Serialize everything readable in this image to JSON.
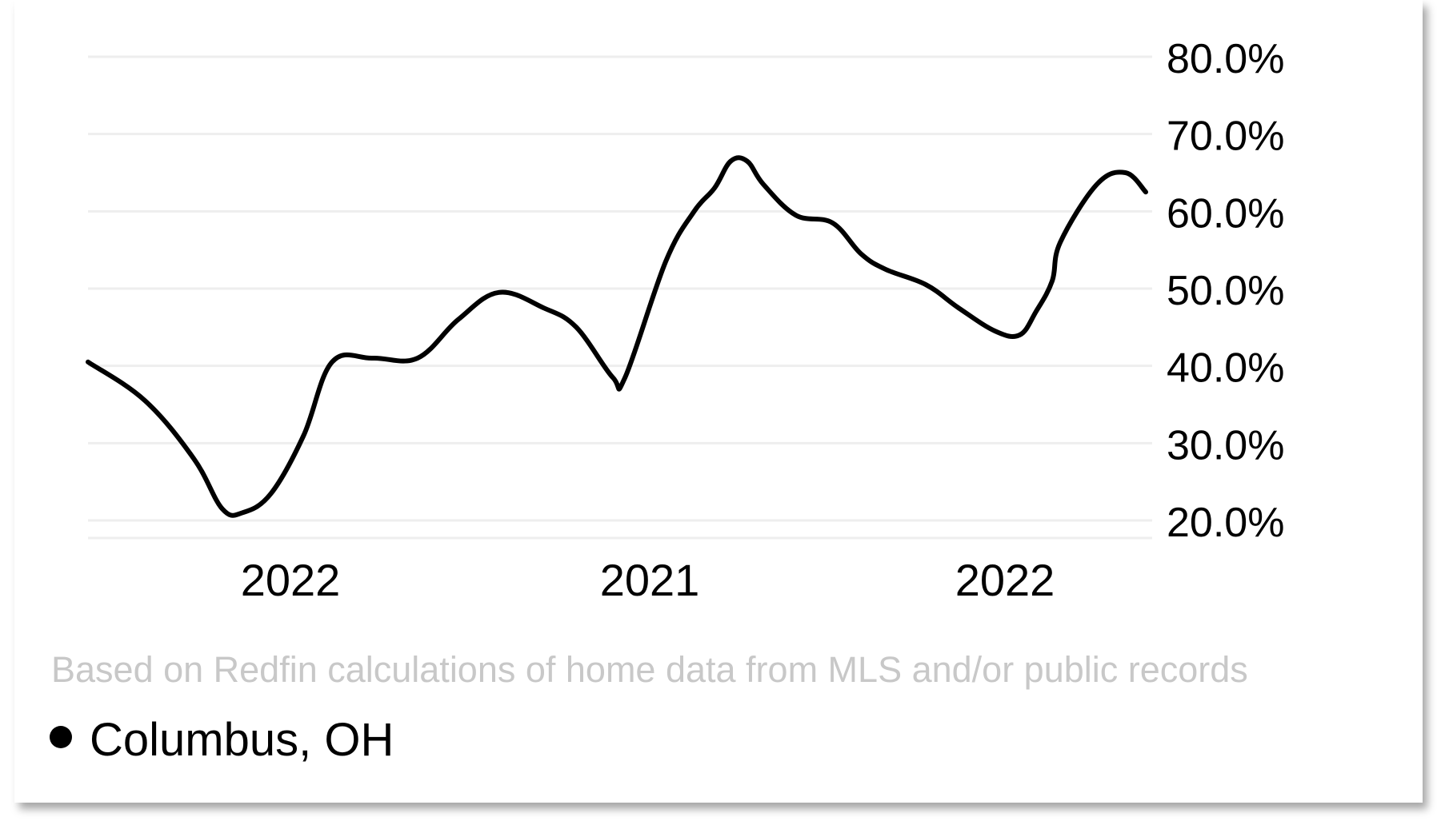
{
  "chart_data": {
    "type": "line",
    "x_tick_labels": [
      "2022",
      "2021",
      "2022"
    ],
    "y_tick_labels": [
      "80.0%",
      "70.0%",
      "60.0%",
      "50.0%",
      "40.0%",
      "30.0%",
      "20.0%"
    ],
    "y_ticks": [
      80,
      70,
      60,
      50,
      40,
      30,
      20
    ],
    "ylim": [
      18.0,
      82.0
    ],
    "xlim": [
      0,
      26
    ],
    "grid": true,
    "y_axis_side": "right",
    "series": [
      {
        "name": "Columbus, OH",
        "color": "#000000",
        "x": [
          0,
          1.4,
          2.6,
          3.3,
          3.8,
          4.5,
          5.3,
          6.0,
          7.0,
          8.1,
          9.1,
          10.1,
          11.2,
          12.0,
          12.9,
          13.2,
          14.2,
          14.9,
          15.4,
          15.8,
          16.2,
          16.6,
          17.4,
          18.3,
          19.0,
          19.6,
          20.6,
          21.4,
          22.3,
          22.9,
          23.3,
          23.7,
          23.9,
          24.8,
          25.5,
          26.0
        ],
        "y": [
          40.5,
          35.5,
          28.0,
          21.5,
          21.0,
          23.5,
          31.0,
          40.5,
          41.0,
          41.0,
          46.0,
          49.5,
          47.5,
          45.0,
          38.5,
          38.5,
          53.5,
          60.0,
          63.0,
          66.5,
          66.5,
          63.5,
          59.5,
          58.5,
          54.5,
          52.5,
          50.5,
          47.5,
          44.5,
          44.0,
          47.0,
          51.0,
          56.0,
          63.5,
          65.0,
          62.5
        ]
      }
    ]
  },
  "caption": "Based on Redfin calculations of home data from MLS and/or public records",
  "legend": {
    "label": "Columbus, OH",
    "marker_color": "#000000"
  }
}
